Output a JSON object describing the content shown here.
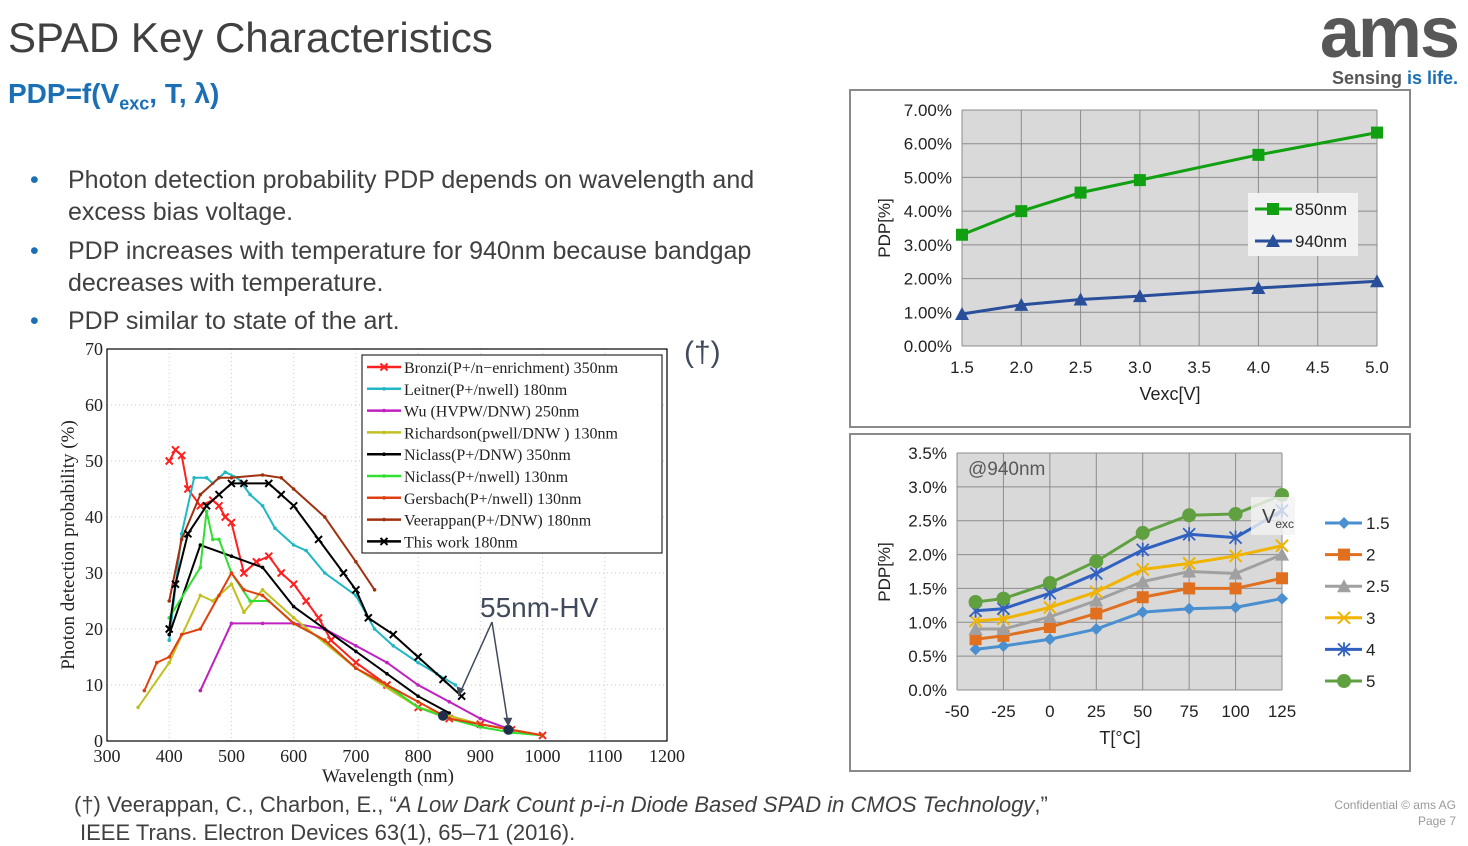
{
  "slide": {
    "title": "SPAD Key Characteristics",
    "subtitle_main": "PDP=f(V",
    "subtitle_sub": "exc",
    "subtitle_rest": ", T, λ)",
    "bullets": [
      "Photon detection probability PDP depends on wavelength and excess bias voltage.",
      "PDP increases with temperature for 940nm because bandgap decreases with temperature.",
      "PDP similar to state of the art."
    ],
    "bullet_glyph": "•",
    "dagger": "(†)",
    "footnote_prefix": "(†) Veerappan, C., Charbon, E., “",
    "footnote_title": "A Low Dark Count p-i-n Diode Based SPAD in CMOS Technology",
    "footnote_suffix": ",”",
    "footnote_line2": "IEEE Trans. Electron Devices 63(1), 65–71 (2016).",
    "confidential": "Confidential © ams AG",
    "page": "Page 7",
    "logo_text": "ams",
    "tagline_a": "Sensing",
    "tagline_b": " is life.",
    "colors": {
      "accent": "#1a6fb5",
      "text": "#404040",
      "logo": "#575757"
    }
  },
  "chart_data": [
    {
      "type": "line",
      "xlabel": "Wavelength (nm)",
      "ylabel": "Photon detection probability (%)",
      "xlim": [
        300,
        1200
      ],
      "ylim": [
        0,
        70
      ],
      "xticks": [
        300,
        400,
        500,
        600,
        700,
        800,
        900,
        1000,
        1100,
        1200
      ],
      "yticks": [
        0,
        10,
        20,
        30,
        40,
        50,
        60,
        70
      ],
      "grid": true,
      "legend": "top-right",
      "annotation": "55nm-HV",
      "annotation_points": [
        [
          840,
          4.5
        ],
        [
          945,
          2
        ]
      ],
      "series": [
        {
          "name": "Bronzi(P+/n−enrichment) 350nm",
          "color": "#ff2020",
          "marker": "x",
          "points": [
            [
              400,
              50
            ],
            [
              410,
              52
            ],
            [
              420,
              51
            ],
            [
              430,
              45
            ],
            [
              450,
              42
            ],
            [
              470,
              43
            ],
            [
              480,
              42
            ],
            [
              490,
              40
            ],
            [
              500,
              39
            ],
            [
              520,
              30
            ],
            [
              540,
              32
            ],
            [
              560,
              33
            ],
            [
              580,
              30
            ],
            [
              600,
              28
            ],
            [
              620,
              25
            ],
            [
              640,
              22
            ],
            [
              660,
              18
            ],
            [
              700,
              14
            ],
            [
              750,
              10
            ],
            [
              800,
              6
            ],
            [
              850,
              4
            ],
            [
              900,
              3
            ],
            [
              950,
              2
            ],
            [
              1000,
              1
            ]
          ]
        },
        {
          "name": "Leitner(P+/nwell) 180nm",
          "color": "#20b8c4",
          "marker": "dot",
          "points": [
            [
              400,
              18
            ],
            [
              420,
              37
            ],
            [
              440,
              47
            ],
            [
              460,
              47
            ],
            [
              470,
              46
            ],
            [
              490,
              48
            ],
            [
              510,
              47
            ],
            [
              530,
              44
            ],
            [
              550,
              42
            ],
            [
              570,
              38
            ],
            [
              600,
              35
            ],
            [
              620,
              34
            ],
            [
              650,
              30
            ],
            [
              700,
              26
            ],
            [
              730,
              20
            ],
            [
              760,
              17
            ],
            [
              800,
              14
            ],
            [
              830,
              12
            ],
            [
              860,
              10
            ]
          ]
        },
        {
          "name": "Wu (HVPW/DNW) 250nm",
          "color": "#c020c0",
          "marker": "dot",
          "points": [
            [
              450,
              9
            ],
            [
              500,
              21
            ],
            [
              550,
              21
            ],
            [
              600,
              21
            ],
            [
              650,
              20
            ],
            [
              700,
              17
            ],
            [
              750,
              14
            ],
            [
              800,
              10
            ],
            [
              850,
              7
            ],
            [
              900,
              4
            ],
            [
              950,
              2
            ],
            [
              1000,
              1
            ]
          ]
        },
        {
          "name": "Richardson(pwell/DNW ) 130nm",
          "color": "#c0c020",
          "marker": "dot",
          "points": [
            [
              350,
              6
            ],
            [
              400,
              14
            ],
            [
              450,
              26
            ],
            [
              470,
              25
            ],
            [
              500,
              28
            ],
            [
              520,
              23
            ],
            [
              550,
              27
            ],
            [
              600,
              22
            ],
            [
              700,
              13
            ],
            [
              800,
              6
            ],
            [
              900,
              3
            ],
            [
              1000,
              1
            ]
          ]
        },
        {
          "name": "Niclass(P+/DNW) 350nm",
          "color": "#000000",
          "marker": "dot",
          "points": [
            [
              400,
              19
            ],
            [
              450,
              35
            ],
            [
              500,
              33
            ],
            [
              550,
              31
            ],
            [
              600,
              24
            ],
            [
              650,
              20
            ],
            [
              700,
              16
            ],
            [
              750,
              12
            ],
            [
              800,
              8
            ],
            [
              850,
              5
            ]
          ]
        },
        {
          "name": "Niclass(P+/nwell) 130nm",
          "color": "#30e030",
          "marker": "dot",
          "points": [
            [
              400,
              22
            ],
            [
              450,
              31
            ],
            [
              460,
              41
            ],
            [
              470,
              36
            ],
            [
              480,
              36
            ],
            [
              500,
              30
            ],
            [
              530,
              25
            ],
            [
              560,
              25
            ],
            [
              600,
              21
            ],
            [
              650,
              18
            ],
            [
              700,
              13
            ],
            [
              750,
              10
            ],
            [
              800,
              6
            ],
            [
              850,
              4
            ],
            [
              900,
              2.5
            ],
            [
              950,
              1.5
            ],
            [
              1000,
              1
            ]
          ]
        },
        {
          "name": "Gersbach(P+/nwell) 130nm",
          "color": "#e04010",
          "marker": "dot",
          "points": [
            [
              360,
              9
            ],
            [
              380,
              14
            ],
            [
              400,
              15
            ],
            [
              420,
              19
            ],
            [
              450,
              20
            ],
            [
              480,
              26
            ],
            [
              500,
              30
            ],
            [
              520,
              27
            ],
            [
              550,
              26
            ],
            [
              600,
              21
            ],
            [
              650,
              18
            ],
            [
              700,
              13
            ],
            [
              750,
              10
            ],
            [
              800,
              7
            ],
            [
              850,
              4
            ],
            [
              900,
              3
            ],
            [
              1000,
              1
            ]
          ]
        },
        {
          "name": "Veerappan(P+/DNW) 180nm",
          "color": "#a03010",
          "marker": "dot",
          "points": [
            [
              400,
              25
            ],
            [
              420,
              36
            ],
            [
              450,
              44
            ],
            [
              480,
              47
            ],
            [
              500,
              47
            ],
            [
              550,
              47.5
            ],
            [
              580,
              47
            ],
            [
              600,
              45
            ],
            [
              650,
              40
            ],
            [
              700,
              32
            ],
            [
              730,
              27
            ]
          ]
        },
        {
          "name": "This work 180nm",
          "color": "#000000",
          "marker": "x",
          "points": [
            [
              400,
              20
            ],
            [
              410,
              28
            ],
            [
              430,
              37
            ],
            [
              460,
              42
            ],
            [
              480,
              44
            ],
            [
              500,
              46
            ],
            [
              520,
              46
            ],
            [
              560,
              46
            ],
            [
              580,
              44
            ],
            [
              600,
              42
            ],
            [
              640,
              36
            ],
            [
              680,
              30
            ],
            [
              700,
              27
            ],
            [
              720,
              22
            ],
            [
              760,
              19
            ],
            [
              800,
              15
            ],
            [
              840,
              11
            ],
            [
              870,
              8
            ]
          ]
        }
      ]
    },
    {
      "type": "line",
      "xlabel": "Vexc[V]",
      "ylabel": "PDP[%]",
      "xlim": [
        1.5,
        5.0
      ],
      "ylim": [
        0,
        7
      ],
      "xticks": [
        "1.5",
        "2.0",
        "2.5",
        "3.0",
        "3.5",
        "4.0",
        "4.5",
        "5.0"
      ],
      "yticks": [
        "0.00%",
        "1.00%",
        "2.00%",
        "3.00%",
        "4.00%",
        "5.00%",
        "6.00%",
        "7.00%"
      ],
      "grid": true,
      "legend": "right",
      "x": [
        1.5,
        2.0,
        2.5,
        3.0,
        4.0,
        5.0
      ],
      "series": [
        {
          "name": "850nm",
          "color": "#11a011",
          "marker": "square",
          "values": [
            3.3,
            4.0,
            4.55,
            4.92,
            5.67,
            6.33
          ]
        },
        {
          "name": "940nm",
          "color": "#2a4f9a",
          "marker": "triangle",
          "values": [
            0.95,
            1.22,
            1.38,
            1.48,
            1.72,
            1.92
          ]
        }
      ]
    },
    {
      "type": "line",
      "xlabel": "T[°C]",
      "ylabel": "PDP[%]",
      "annotation": "@940nm",
      "legend_title_main": "V",
      "legend_title_sub": "exc",
      "xlim": [
        -50,
        125
      ],
      "ylim": [
        0,
        3.5
      ],
      "xticks": [
        "-50",
        "-25",
        "0",
        "25",
        "50",
        "75",
        "100",
        "125"
      ],
      "yticks": [
        "0.0%",
        "0.5%",
        "1.0%",
        "1.5%",
        "2.0%",
        "2.5%",
        "3.0%",
        "3.5%"
      ],
      "grid": true,
      "legend": "right",
      "x": [
        -40,
        -25,
        0,
        25,
        50,
        75,
        100,
        125
      ],
      "series": [
        {
          "name": "1.5",
          "color": "#4a8fd0",
          "marker": "diamond",
          "values": [
            0.6,
            0.65,
            0.75,
            0.9,
            1.15,
            1.2,
            1.22,
            1.35
          ]
        },
        {
          "name": "2",
          "color": "#e07020",
          "marker": "square",
          "values": [
            0.75,
            0.8,
            0.93,
            1.13,
            1.37,
            1.5,
            1.5,
            1.65
          ]
        },
        {
          "name": "2.5",
          "color": "#a0a0a0",
          "marker": "triangle",
          "values": [
            0.9,
            0.9,
            1.08,
            1.32,
            1.6,
            1.75,
            1.72,
            2.0
          ]
        },
        {
          "name": "3",
          "color": "#f0b400",
          "marker": "x",
          "values": [
            1.02,
            1.05,
            1.22,
            1.45,
            1.78,
            1.87,
            1.98,
            2.13
          ]
        },
        {
          "name": "4",
          "color": "#3060c0",
          "marker": "asterisk",
          "values": [
            1.17,
            1.2,
            1.43,
            1.72,
            2.07,
            2.3,
            2.25,
            2.65
          ]
        },
        {
          "name": "5",
          "color": "#60a040",
          "marker": "circle",
          "values": [
            1.3,
            1.35,
            1.58,
            1.9,
            2.32,
            2.58,
            2.6,
            2.88
          ]
        }
      ]
    }
  ]
}
